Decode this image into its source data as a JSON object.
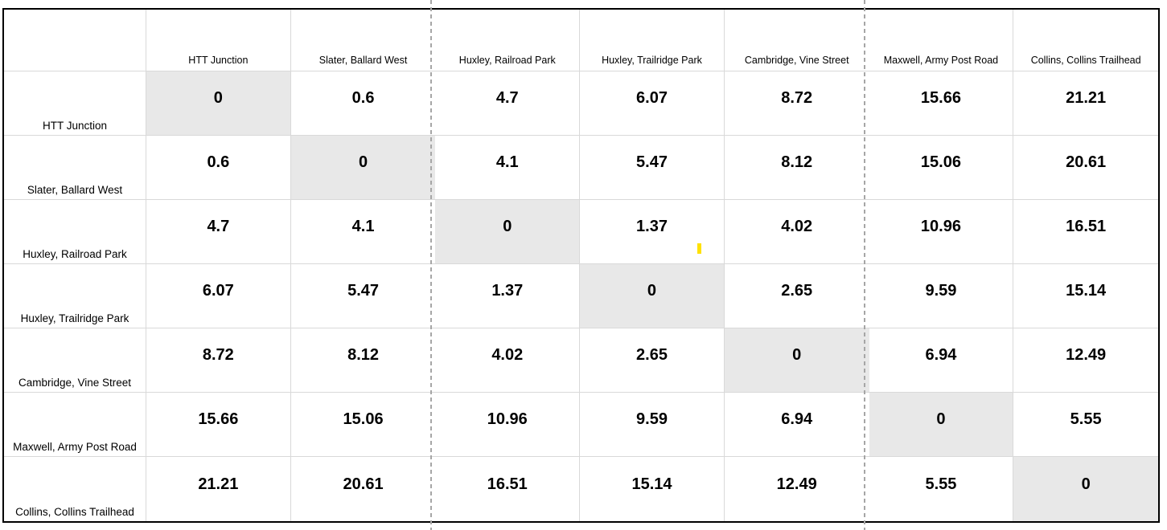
{
  "app": {
    "description": "Spreadsheet distance matrix between trail locations"
  },
  "matrix": {
    "corner_label": "",
    "column_headers": [
      "HTT Junction",
      "Slater, Ballard West",
      "Huxley, Railroad Park",
      "Huxley, Trailridge Park",
      "Cambridge, Vine Street",
      "Maxwell, Army Post Road",
      "Collins, Collins Trailhead"
    ],
    "rows": [
      {
        "label": "HTT Junction",
        "values": [
          "0",
          "0.6",
          "4.7",
          "6.07",
          "8.72",
          "15.66",
          "21.21"
        ]
      },
      {
        "label": "Slater, Ballard West",
        "values": [
          "0.6",
          "0",
          "4.1",
          "5.47",
          "8.12",
          "15.06",
          "20.61"
        ]
      },
      {
        "label": "Huxley, Railroad Park",
        "values": [
          "4.7",
          "4.1",
          "0",
          "1.37",
          "4.02",
          "10.96",
          "16.51"
        ]
      },
      {
        "label": "Huxley, Trailridge Park",
        "values": [
          "6.07",
          "5.47",
          "1.37",
          "0",
          "2.65",
          "9.59",
          "15.14"
        ]
      },
      {
        "label": "Cambridge, Vine Street",
        "values": [
          "8.72",
          "8.12",
          "4.02",
          "2.65",
          "0",
          "6.94",
          "12.49"
        ]
      },
      {
        "label": "Maxwell, Army Post Road",
        "values": [
          "15.66",
          "15.06",
          "10.96",
          "9.59",
          "6.94",
          "0",
          "5.55"
        ]
      },
      {
        "label": "Collins, Collins Trailhead",
        "values": [
          "21.21",
          "20.61",
          "16.51",
          "15.14",
          "12.49",
          "5.55",
          "0"
        ]
      }
    ],
    "diagonal_is_highlighted": true,
    "page_break_after_columns": [
      "Slater, Ballard West",
      "Cambridge, Vine Street"
    ]
  },
  "colors": {
    "diagonal_fill": "#e8e8e8",
    "gridline": "#d9d9d9",
    "outer_border": "#000000",
    "page_break_dash": "#a6a6a6",
    "caret_mark": "#ffe100",
    "text": "#000000",
    "background": "#ffffff"
  }
}
